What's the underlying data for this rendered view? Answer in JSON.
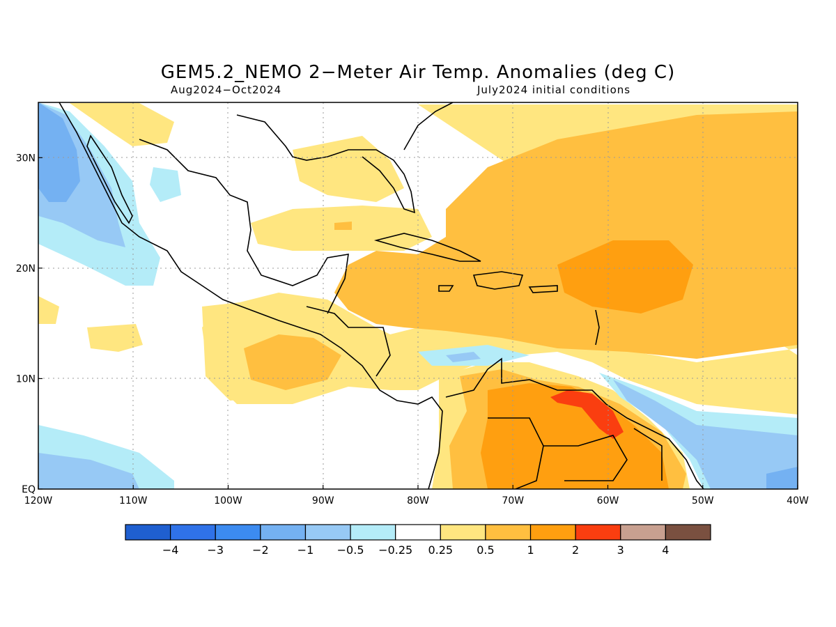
{
  "title": "GEM5.2_NEMO 2−Meter Air Temp. Anomalies (deg C)",
  "subtitle_left": "Aug2024−Oct2024",
  "subtitle_right": "July2024 initial conditions",
  "map": {
    "lon_range": [
      -120,
      -40
    ],
    "lat_range": [
      0,
      35
    ],
    "x_ticks": [
      {
        "lon": -120,
        "label": "120W"
      },
      {
        "lon": -110,
        "label": "110W"
      },
      {
        "lon": -100,
        "label": "100W"
      },
      {
        "lon": -90,
        "label": "90W"
      },
      {
        "lon": -80,
        "label": "80W"
      },
      {
        "lon": -70,
        "label": "70W"
      },
      {
        "lon": -60,
        "label": "60W"
      },
      {
        "lon": -50,
        "label": "50W"
      },
      {
        "lon": -40,
        "label": "40W"
      }
    ],
    "y_ticks": [
      {
        "lat": 0,
        "label": "EQ"
      },
      {
        "lat": 10,
        "label": "10N"
      },
      {
        "lat": 20,
        "label": "20N"
      },
      {
        "lat": 30,
        "label": "30N"
      }
    ],
    "grid": "dotted"
  },
  "colorbar": {
    "colors": [
      "#1f5fd0",
      "#2f72e8",
      "#3c8bf0",
      "#74b1f2",
      "#97c9f5",
      "#b4ecf8",
      "#ffffff",
      "#ffe680",
      "#ffbf40",
      "#ff9f10",
      "#fa3e10",
      "#c8a090",
      "#7a5040"
    ],
    "labels": [
      "−4",
      "−3",
      "−2",
      "−1",
      "−0.5",
      "−0.25",
      "0.25",
      "0.5",
      "1",
      "2",
      "3",
      "4"
    ]
  }
}
